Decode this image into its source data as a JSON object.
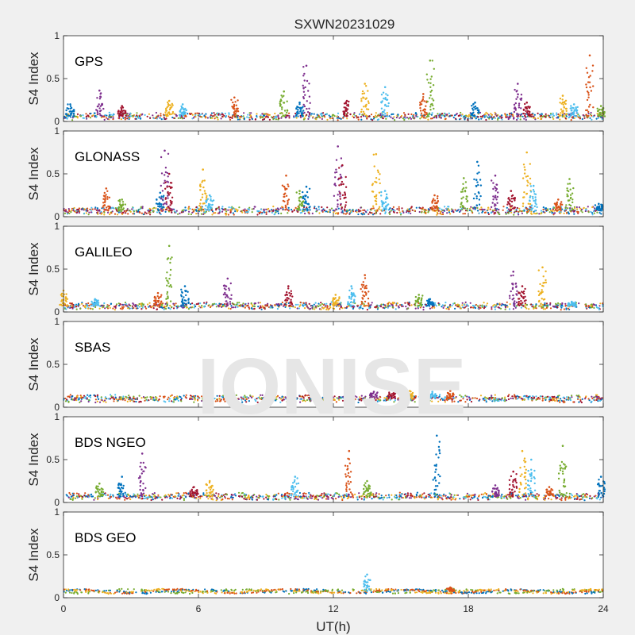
{
  "figure": {
    "title": "SXWN20231029",
    "watermark": "IONISE",
    "xlabel": "UT(h)",
    "ylabel": "S4 Index"
  },
  "chart_data": [
    {
      "type": "scatter",
      "system": "GPS",
      "label": "GPS",
      "baseline": 0.06,
      "noise": 0.025,
      "xlim": [
        0,
        24
      ],
      "ylim": [
        0,
        1
      ],
      "xticks": [
        0,
        6,
        12,
        18,
        24
      ],
      "yticks": [
        0,
        0.5,
        1
      ],
      "spikes": [
        [
          0.3,
          0.2
        ],
        [
          1.6,
          0.36
        ],
        [
          2.6,
          0.18
        ],
        [
          4.7,
          0.24
        ],
        [
          5.3,
          0.2
        ],
        [
          7.6,
          0.28
        ],
        [
          9.8,
          0.35
        ],
        [
          10.5,
          0.22
        ],
        [
          10.8,
          0.65
        ],
        [
          12.6,
          0.24
        ],
        [
          13.4,
          0.44
        ],
        [
          14.3,
          0.4
        ],
        [
          16.0,
          0.32
        ],
        [
          16.3,
          0.71
        ],
        [
          18.3,
          0.22
        ],
        [
          20.2,
          0.44
        ],
        [
          20.6,
          0.22
        ],
        [
          22.2,
          0.3
        ],
        [
          22.7,
          0.2
        ],
        [
          23.4,
          0.77
        ],
        [
          23.9,
          0.18
        ]
      ]
    },
    {
      "type": "scatter",
      "system": "GLONASS",
      "label": "GLONASS",
      "baseline": 0.07,
      "noise": 0.03,
      "xlim": [
        0,
        24
      ],
      "ylim": [
        0,
        1
      ],
      "xticks": [
        0,
        6,
        12,
        18,
        24
      ],
      "yticks": [
        0,
        0.5,
        1
      ],
      "spikes": [
        [
          1.9,
          0.33
        ],
        [
          2.6,
          0.2
        ],
        [
          4.3,
          0.28
        ],
        [
          4.5,
          0.77
        ],
        [
          4.7,
          0.5
        ],
        [
          6.2,
          0.55
        ],
        [
          6.5,
          0.25
        ],
        [
          9.9,
          0.48
        ],
        [
          10.5,
          0.3
        ],
        [
          10.8,
          0.35
        ],
        [
          12.2,
          0.82
        ],
        [
          12.4,
          0.6
        ],
        [
          13.9,
          0.73
        ],
        [
          14.3,
          0.3
        ],
        [
          16.5,
          0.25
        ],
        [
          17.8,
          0.45
        ],
        [
          18.4,
          0.64
        ],
        [
          19.2,
          0.48
        ],
        [
          19.9,
          0.3
        ],
        [
          20.6,
          0.75
        ],
        [
          20.9,
          0.36
        ],
        [
          22.0,
          0.2
        ],
        [
          22.5,
          0.44
        ],
        [
          23.8,
          0.15
        ]
      ]
    },
    {
      "type": "scatter",
      "system": "GALILEO",
      "label": "GALILEO",
      "baseline": 0.07,
      "noise": 0.025,
      "xlim": [
        0,
        24
      ],
      "ylim": [
        0,
        1
      ],
      "xticks": [
        0,
        6,
        12,
        18,
        24
      ],
      "yticks": [
        0,
        0.5,
        1
      ],
      "spikes": [
        [
          0.0,
          0.25
        ],
        [
          1.4,
          0.15
        ],
        [
          4.2,
          0.22
        ],
        [
          4.7,
          0.77
        ],
        [
          5.4,
          0.3
        ],
        [
          7.3,
          0.39
        ],
        [
          10.0,
          0.3
        ],
        [
          12.1,
          0.2
        ],
        [
          12.8,
          0.3
        ],
        [
          13.4,
          0.43
        ],
        [
          15.8,
          0.2
        ],
        [
          16.3,
          0.15
        ],
        [
          20.0,
          0.47
        ],
        [
          20.4,
          0.3
        ],
        [
          21.3,
          0.52
        ],
        [
          22.6,
          0.12
        ]
      ]
    },
    {
      "type": "scatter",
      "system": "SBAS",
      "label": "SBAS",
      "baseline": 0.1,
      "noise": 0.025,
      "xlim": [
        0,
        24
      ],
      "ylim": [
        0,
        1
      ],
      "xticks": [
        0,
        6,
        12,
        18,
        24
      ],
      "yticks": [
        0,
        0.5,
        1
      ],
      "spikes": [
        [
          13.8,
          0.18
        ],
        [
          14.6,
          0.2
        ],
        [
          15.4,
          0.19
        ],
        [
          16.4,
          0.18
        ],
        [
          17.2,
          0.19
        ]
      ]
    },
    {
      "type": "scatter",
      "system": "BDS NGEO",
      "label": "BDS NGEO",
      "baseline": 0.07,
      "noise": 0.025,
      "xlim": [
        0,
        24
      ],
      "ylim": [
        0,
        1
      ],
      "xticks": [
        0,
        6,
        12,
        18,
        24
      ],
      "yticks": [
        0,
        0.5,
        1
      ],
      "spikes": [
        [
          1.6,
          0.22
        ],
        [
          2.6,
          0.3
        ],
        [
          3.5,
          0.57
        ],
        [
          5.8,
          0.18
        ],
        [
          6.5,
          0.25
        ],
        [
          10.3,
          0.3
        ],
        [
          12.7,
          0.6
        ],
        [
          13.5,
          0.25
        ],
        [
          16.6,
          0.78
        ],
        [
          19.2,
          0.2
        ],
        [
          20.0,
          0.36
        ],
        [
          20.4,
          0.6
        ],
        [
          20.8,
          0.5
        ],
        [
          21.6,
          0.18
        ],
        [
          22.2,
          0.66
        ],
        [
          23.9,
          0.3
        ]
      ]
    },
    {
      "type": "scatter",
      "system": "BDS GEO",
      "label": "BDS GEO",
      "baseline": 0.075,
      "noise": 0.01,
      "xlim": [
        0,
        24
      ],
      "ylim": [
        0,
        1
      ],
      "xticks": [
        0,
        6,
        12,
        18,
        24
      ],
      "yticks": [
        0,
        0.5,
        1
      ],
      "spikes": [
        [
          13.5,
          0.27
        ],
        [
          17.2,
          0.12
        ]
      ]
    }
  ],
  "colors": {
    "series": [
      "#0072bd",
      "#d95319",
      "#edb120",
      "#7e2f8e",
      "#77ac30",
      "#4dbeee",
      "#a2142f"
    ],
    "axes_bg": "#ffffff",
    "figure_bg": "#f0f0f0",
    "axis": "#262626",
    "watermark": "#e6e6e6"
  }
}
